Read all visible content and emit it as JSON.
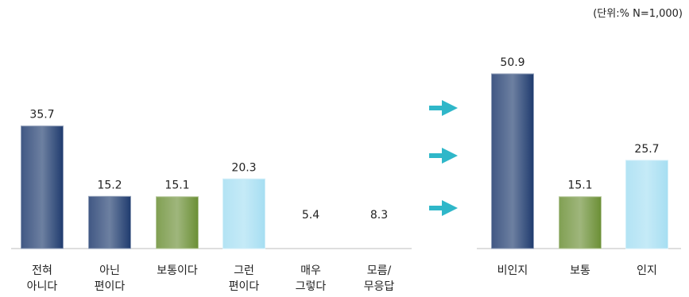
{
  "unit_note": "(단위:%  N=1,000)",
  "chart_data": [
    {
      "type": "bar",
      "categories": [
        [
          "전혀",
          "아니다"
        ],
        [
          "아닌",
          "편이다"
        ],
        [
          "보통이다"
        ],
        [
          "그런",
          "편이다"
        ],
        [
          "매우",
          "그렇다"
        ],
        [
          "모름/",
          "무응답"
        ]
      ],
      "values": [
        35.7,
        15.2,
        15.1,
        20.3,
        5.4,
        8.3
      ],
      "value_labels": [
        "35.7",
        "15.2",
        "15.1",
        "20.3",
        "5.4",
        "8.3"
      ],
      "bar_colors": [
        "#1f3b6e",
        "#1f3b6e",
        "#6b8f35",
        "#a6def2",
        null,
        null
      ],
      "ylim": [
        0,
        55
      ],
      "grid": false,
      "legend": "none"
    },
    {
      "type": "bar",
      "categories": [
        [
          "비인지"
        ],
        [
          "보통"
        ],
        [
          "인지"
        ]
      ],
      "values": [
        50.9,
        15.1,
        25.7
      ],
      "value_labels": [
        "50.9",
        "15.1",
        "25.7"
      ],
      "bar_colors": [
        "#1f3b6e",
        "#6b8f35",
        "#a6def2"
      ],
      "ylim": [
        0,
        55
      ],
      "grid": false,
      "legend": "none"
    }
  ],
  "arrow_color": "#2fb7c9"
}
